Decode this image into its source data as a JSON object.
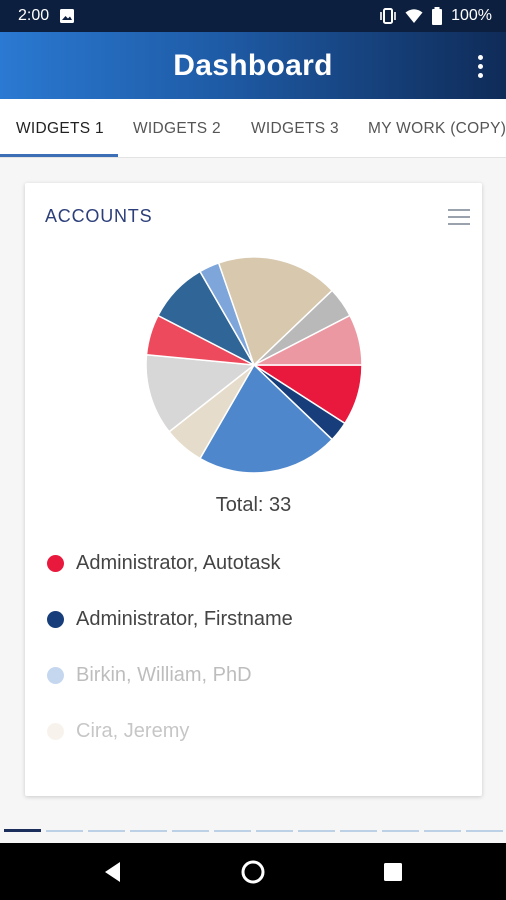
{
  "status_bar": {
    "time": "2:00",
    "battery": "100%"
  },
  "app_bar": {
    "title": "Dashboard"
  },
  "tabs": [
    {
      "label": "WIDGETS 1",
      "active": true
    },
    {
      "label": "WIDGETS 2",
      "active": false
    },
    {
      "label": "WIDGETS 3",
      "active": false
    },
    {
      "label": "MY WORK (COPY)",
      "active": false
    }
  ],
  "card": {
    "title": "ACCOUNTS",
    "total": "Total: 33",
    "legend": [
      {
        "label": "Administrator, Autotask",
        "color": "#e8193c",
        "opacity": 1.0
      },
      {
        "label": "Administrator, Firstname",
        "color": "#173d7a",
        "opacity": 1.0
      },
      {
        "label": "Birkin, William, PhD",
        "color": "#5b8fd3",
        "opacity": 0.35
      },
      {
        "label": "Cira, Jeremy",
        "color": "#e6d9c2",
        "opacity": 0.3
      }
    ]
  },
  "chart_data": {
    "type": "pie",
    "total": 33,
    "slices": [
      {
        "value": 3,
        "color": "#e8193c"
      },
      {
        "value": 1,
        "color": "#173d7a"
      },
      {
        "value": 7,
        "color": "#4f87cc"
      },
      {
        "value": 2,
        "color": "#e6dccb"
      },
      {
        "value": 4,
        "color": "#d7d7d7"
      },
      {
        "value": 2,
        "color": "#ee4a5d"
      },
      {
        "value": 3,
        "color": "#2f6597"
      },
      {
        "value": 1,
        "color": "#7ea6db"
      },
      {
        "value": 6,
        "color": "#d7c8ae"
      },
      {
        "value": 1.5,
        "color": "#b9b9b9"
      },
      {
        "value": 2.5,
        "color": "#ec98a3"
      }
    ]
  },
  "pager": {
    "count": 12,
    "active_index": 0
  },
  "nav_bar": {
    "icons": [
      "back-icon",
      "home-icon",
      "recents-icon"
    ]
  }
}
